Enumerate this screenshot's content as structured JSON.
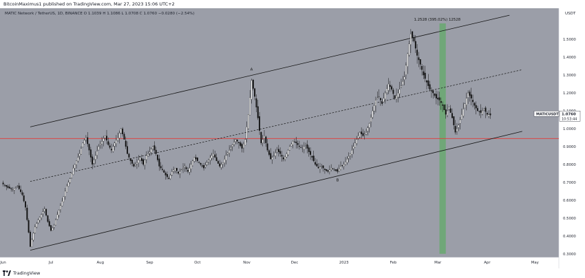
{
  "header": {
    "published": "BitcoinMaximus1 published on TradingView.com, Mar 27, 2023 15:06 UTC+2"
  },
  "footer": {
    "brand": "TradingView"
  },
  "chart_data": {
    "type": "candlestick",
    "symbol_line": "MATIC Network / TetherUS, 1D, BINANCE  O 1.1039  H 1.1086  L 1.0708  C 1.0760  −0.0280 (−2.54%)",
    "currency": "USDT",
    "price_label": "MATICUSDT",
    "last_price": "1.0760",
    "countdown": "10:53:44",
    "y_ticks": [
      "1.5000",
      "1.4000",
      "1.3000",
      "1.2000",
      "1.1000",
      "1.0000",
      "0.9000",
      "0.8000",
      "0.7000",
      "0.6000",
      "0.5000",
      "0.4000",
      "0.3000"
    ],
    "ylim": [
      0.28,
      1.62
    ],
    "x_ticks": [
      {
        "label": "Jun",
        "day": 0
      },
      {
        "label": "Jul",
        "day": 30
      },
      {
        "label": "Aug",
        "day": 61
      },
      {
        "label": "Sep",
        "day": 92
      },
      {
        "label": "Oct",
        "day": 122
      },
      {
        "label": "Nov",
        "day": 153
      },
      {
        "label": "Dec",
        "day": 183
      },
      {
        "label": "2023",
        "day": 214
      },
      {
        "label": "Feb",
        "day": 245
      },
      {
        "label": "Mar",
        "day": 273
      },
      {
        "label": "Apr",
        "day": 304
      },
      {
        "label": "May",
        "day": 334
      }
    ],
    "xlim": [
      -2,
      349
    ],
    "horizontal_line": 0.945,
    "green_band_days": [
      274,
      278
    ],
    "annotations": [
      {
        "text": "A",
        "day": 156,
        "price": 1.325
      },
      {
        "text": "B",
        "day": 210,
        "price": 0.705
      },
      {
        "text": "1.2528 (395.02%) 12528",
        "day": 258,
        "price": 1.605
      }
    ],
    "channel_upper": [
      [
        17,
        1.01
      ],
      [
        318,
        1.635
      ]
    ],
    "channel_mid": [
      [
        17,
        0.705
      ],
      [
        326,
        1.33
      ]
    ],
    "channel_lower": [
      [
        17,
        0.32
      ],
      [
        326,
        0.985
      ]
    ],
    "closes": [
      [
        0,
        0.69
      ],
      [
        3,
        0.67
      ],
      [
        6,
        0.66
      ],
      [
        9,
        0.68
      ],
      [
        12,
        0.63
      ],
      [
        14,
        0.56
      ],
      [
        16,
        0.42
      ],
      [
        17,
        0.34
      ],
      [
        18,
        0.38
      ],
      [
        20,
        0.45
      ],
      [
        22,
        0.49
      ],
      [
        24,
        0.52
      ],
      [
        26,
        0.55
      ],
      [
        28,
        0.48
      ],
      [
        30,
        0.43
      ],
      [
        32,
        0.46
      ],
      [
        34,
        0.52
      ],
      [
        36,
        0.57
      ],
      [
        38,
        0.62
      ],
      [
        40,
        0.68
      ],
      [
        42,
        0.72
      ],
      [
        44,
        0.78
      ],
      [
        46,
        0.82
      ],
      [
        48,
        0.86
      ],
      [
        50,
        0.92
      ],
      [
        52,
        0.95
      ],
      [
        54,
        0.88
      ],
      [
        56,
        0.8
      ],
      [
        58,
        0.85
      ],
      [
        60,
        0.9
      ],
      [
        62,
        0.93
      ],
      [
        64,
        0.96
      ],
      [
        66,
        0.91
      ],
      [
        68,
        0.88
      ],
      [
        70,
        0.92
      ],
      [
        72,
        0.95
      ],
      [
        74,
        1.0
      ],
      [
        76,
        0.94
      ],
      [
        78,
        0.86
      ],
      [
        80,
        0.82
      ],
      [
        82,
        0.79
      ],
      [
        84,
        0.81
      ],
      [
        86,
        0.84
      ],
      [
        88,
        0.8
      ],
      [
        90,
        0.85
      ],
      [
        92,
        0.87
      ],
      [
        94,
        0.9
      ],
      [
        96,
        0.86
      ],
      [
        98,
        0.79
      ],
      [
        100,
        0.77
      ],
      [
        102,
        0.74
      ],
      [
        104,
        0.72
      ],
      [
        106,
        0.76
      ],
      [
        108,
        0.78
      ],
      [
        110,
        0.75
      ],
      [
        112,
        0.77
      ],
      [
        114,
        0.79
      ],
      [
        116,
        0.76
      ],
      [
        118,
        0.8
      ],
      [
        120,
        0.84
      ],
      [
        122,
        0.82
      ],
      [
        124,
        0.8
      ],
      [
        126,
        0.78
      ],
      [
        128,
        0.81
      ],
      [
        130,
        0.84
      ],
      [
        132,
        0.86
      ],
      [
        134,
        0.82
      ],
      [
        136,
        0.79
      ],
      [
        138,
        0.81
      ],
      [
        140,
        0.85
      ],
      [
        142,
        0.88
      ],
      [
        144,
        0.91
      ],
      [
        146,
        0.94
      ],
      [
        148,
        0.92
      ],
      [
        150,
        0.89
      ],
      [
        152,
        0.94
      ],
      [
        154,
        1.08
      ],
      [
        156,
        1.27
      ],
      [
        158,
        1.18
      ],
      [
        160,
        1.06
      ],
      [
        162,
        0.92
      ],
      [
        164,
        0.96
      ],
      [
        166,
        0.88
      ],
      [
        168,
        0.83
      ],
      [
        170,
        0.85
      ],
      [
        172,
        0.88
      ],
      [
        174,
        0.86
      ],
      [
        176,
        0.83
      ],
      [
        178,
        0.86
      ],
      [
        180,
        0.9
      ],
      [
        182,
        0.93
      ],
      [
        184,
        0.92
      ],
      [
        186,
        0.9
      ],
      [
        188,
        0.89
      ],
      [
        190,
        0.91
      ],
      [
        192,
        0.87
      ],
      [
        194,
        0.84
      ],
      [
        196,
        0.8
      ],
      [
        198,
        0.78
      ],
      [
        200,
        0.79
      ],
      [
        202,
        0.77
      ],
      [
        204,
        0.76
      ],
      [
        206,
        0.78
      ],
      [
        208,
        0.77
      ],
      [
        210,
        0.76
      ],
      [
        212,
        0.79
      ],
      [
        214,
        0.8
      ],
      [
        216,
        0.83
      ],
      [
        218,
        0.86
      ],
      [
        220,
        0.9
      ],
      [
        222,
        0.94
      ],
      [
        224,
        0.98
      ],
      [
        226,
        0.96
      ],
      [
        228,
        0.98
      ],
      [
        230,
        1.03
      ],
      [
        232,
        1.1
      ],
      [
        234,
        1.16
      ],
      [
        236,
        1.18
      ],
      [
        238,
        1.14
      ],
      [
        240,
        1.2
      ],
      [
        242,
        1.25
      ],
      [
        244,
        1.22
      ],
      [
        246,
        1.17
      ],
      [
        248,
        1.2
      ],
      [
        250,
        1.24
      ],
      [
        252,
        1.29
      ],
      [
        254,
        1.42
      ],
      [
        256,
        1.53
      ],
      [
        258,
        1.49
      ],
      [
        260,
        1.41
      ],
      [
        262,
        1.36
      ],
      [
        264,
        1.3
      ],
      [
        266,
        1.26
      ],
      [
        268,
        1.22
      ],
      [
        270,
        1.2
      ],
      [
        272,
        1.17
      ],
      [
        274,
        1.16
      ],
      [
        276,
        1.13
      ],
      [
        278,
        1.08
      ],
      [
        280,
        1.12
      ],
      [
        282,
        1.06
      ],
      [
        284,
        0.98
      ],
      [
        286,
        1.02
      ],
      [
        288,
        1.08
      ],
      [
        290,
        1.14
      ],
      [
        292,
        1.2
      ],
      [
        294,
        1.17
      ],
      [
        296,
        1.13
      ],
      [
        298,
        1.1
      ],
      [
        300,
        1.09
      ],
      [
        302,
        1.11
      ],
      [
        304,
        1.08
      ],
      [
        306,
        1.076
      ]
    ]
  }
}
